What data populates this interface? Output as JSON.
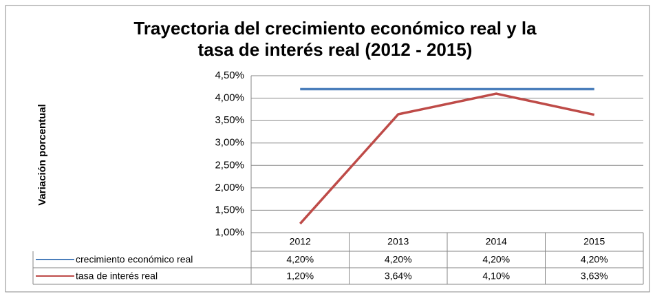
{
  "chart_data": {
    "type": "line",
    "title": [
      "Trayectoria del crecimiento económico real y la",
      "tasa de interés real (2012 - 2015)"
    ],
    "ylabel": "Variación porcentual",
    "categories": [
      "2012",
      "2013",
      "2014",
      "2015"
    ],
    "series": [
      {
        "name": "crecimiento económico real",
        "color": "#4a7ebb",
        "values": [
          4.2,
          4.2,
          4.2,
          4.2
        ],
        "value_labels": [
          "4,20%",
          "4,20%",
          "4,20%",
          "4,20%"
        ]
      },
      {
        "name": "tasa de interés real",
        "color": "#be4b48",
        "values": [
          1.2,
          3.64,
          4.1,
          3.63
        ],
        "value_labels": [
          "1,20%",
          "3,64%",
          "4,10%",
          "3,63%"
        ]
      }
    ],
    "ylim": [
      1.0,
      4.5
    ],
    "yticks": [
      {
        "value": 1.0,
        "label": "1,00%"
      },
      {
        "value": 1.5,
        "label": "1,50%"
      },
      {
        "value": 2.0,
        "label": "2,00%"
      },
      {
        "value": 2.5,
        "label": "2,50%"
      },
      {
        "value": 3.0,
        "label": "3,00%"
      },
      {
        "value": 3.5,
        "label": "3,50%"
      },
      {
        "value": 4.0,
        "label": "4,00%"
      },
      {
        "value": 4.5,
        "label": "4,50%"
      }
    ],
    "grid": true
  }
}
